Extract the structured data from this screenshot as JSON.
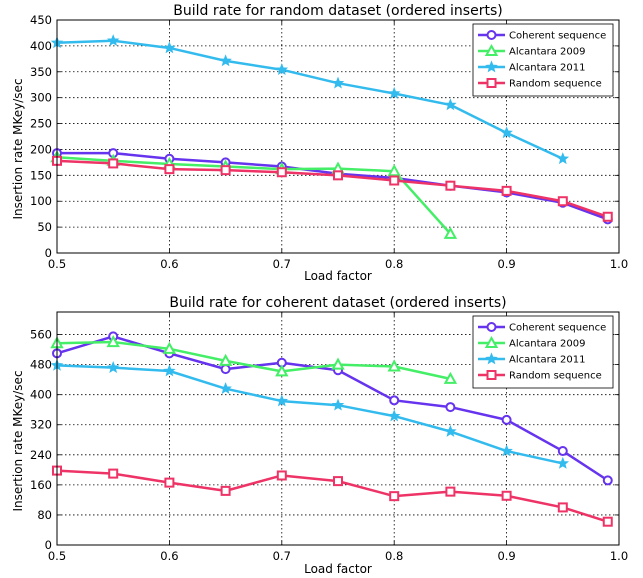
{
  "chart_data": [
    {
      "type": "line",
      "title": "Build rate for random dataset (ordered inserts)",
      "xlabel": "Load factor",
      "ylabel": "Insertion rate MKey/sec",
      "xlim": [
        0.5,
        1.0
      ],
      "ylim": [
        0,
        450
      ],
      "xticks": [
        "0.5",
        "0.6",
        "0.7",
        "0.8",
        "0.9",
        "1.0"
      ],
      "yticks": [
        "0",
        "50",
        "100",
        "150",
        "200",
        "250",
        "300",
        "350",
        "400",
        "450"
      ],
      "grid": true,
      "legend_position": "top-right",
      "series": [
        {
          "name": "Coherent sequence",
          "color": "#6633ee",
          "marker": "circle",
          "x": [
            0.5,
            0.55,
            0.6,
            0.65,
            0.7,
            0.75,
            0.8,
            0.85,
            0.9,
            0.95,
            0.99
          ],
          "y": [
            193,
            193,
            182,
            175,
            167,
            153,
            145,
            130,
            117,
            97,
            65
          ]
        },
        {
          "name": "Alcantara 2009",
          "color": "#44ee66",
          "marker": "triangle",
          "x": [
            0.5,
            0.55,
            0.6,
            0.65,
            0.7,
            0.75,
            0.8,
            0.85
          ],
          "y": [
            185,
            178,
            172,
            167,
            162,
            163,
            158,
            37
          ]
        },
        {
          "name": "Alcantara 2011",
          "color": "#33bbee",
          "marker": "star",
          "x": [
            0.5,
            0.55,
            0.6,
            0.65,
            0.7,
            0.75,
            0.8,
            0.85,
            0.9,
            0.95
          ],
          "y": [
            406,
            410,
            396,
            371,
            354,
            328,
            308,
            286,
            232,
            182
          ]
        },
        {
          "name": "Random sequence",
          "color": "#ee3366",
          "marker": "square",
          "x": [
            0.5,
            0.55,
            0.6,
            0.65,
            0.7,
            0.75,
            0.8,
            0.85,
            0.9,
            0.95,
            0.99
          ],
          "y": [
            178,
            173,
            162,
            160,
            156,
            150,
            140,
            130,
            120,
            100,
            70
          ]
        }
      ]
    },
    {
      "type": "line",
      "title": "Build rate for coherent dataset (ordered inserts)",
      "xlabel": "Load factor",
      "ylabel": "Insertion rate MKey/sec",
      "xlim": [
        0.5,
        1.0
      ],
      "ylim": [
        0,
        620
      ],
      "xticks": [
        "0.5",
        "0.6",
        "0.7",
        "0.8",
        "0.9",
        "1.0"
      ],
      "yticks": [
        "0",
        "80",
        "160",
        "240",
        "320",
        "400",
        "480",
        "560"
      ],
      "grid": true,
      "legend_position": "top-right",
      "series": [
        {
          "name": "Coherent sequence",
          "color": "#6633ee",
          "marker": "circle",
          "x": [
            0.5,
            0.55,
            0.6,
            0.65,
            0.7,
            0.75,
            0.8,
            0.85,
            0.9,
            0.95,
            0.99
          ],
          "y": [
            510,
            555,
            510,
            468,
            485,
            465,
            385,
            367,
            333,
            250,
            172
          ]
        },
        {
          "name": "Alcantara 2009",
          "color": "#44ee66",
          "marker": "triangle",
          "x": [
            0.5,
            0.55,
            0.6,
            0.65,
            0.7,
            0.75,
            0.8,
            0.85
          ],
          "y": [
            537,
            540,
            522,
            490,
            462,
            480,
            475,
            442
          ]
        },
        {
          "name": "Alcantara 2011",
          "color": "#33bbee",
          "marker": "star",
          "x": [
            0.5,
            0.55,
            0.6,
            0.65,
            0.7,
            0.75,
            0.8,
            0.85,
            0.9,
            0.95
          ],
          "y": [
            478,
            472,
            463,
            416,
            383,
            372,
            343,
            302,
            250,
            217
          ]
        },
        {
          "name": "Random sequence",
          "color": "#ee3366",
          "marker": "square",
          "x": [
            0.5,
            0.55,
            0.6,
            0.65,
            0.7,
            0.75,
            0.8,
            0.85,
            0.9,
            0.95,
            0.99
          ],
          "y": [
            198,
            190,
            166,
            144,
            185,
            170,
            130,
            142,
            131,
            100,
            62
          ]
        }
      ]
    }
  ]
}
